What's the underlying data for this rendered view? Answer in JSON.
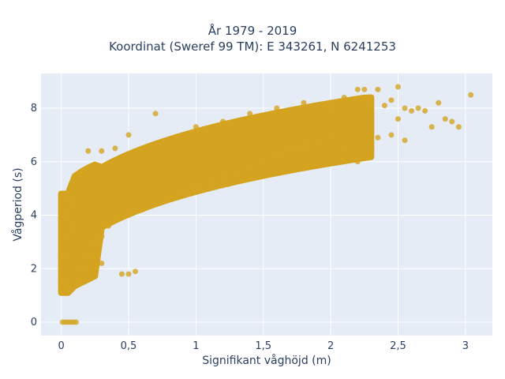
{
  "chart_data": {
    "type": "scatter",
    "title": "År 1979 - 2019",
    "subtitle": "Koordinat (Sweref 99 TM): E 343261, N 6241253",
    "xlabel": "Signifikant våghöjd (m)",
    "ylabel": "Vågperiod (s)",
    "xlim": [
      -0.15,
      3.2
    ],
    "ylim": [
      -0.5,
      9.3
    ],
    "x_ticks": [
      0,
      0.5,
      1,
      1.5,
      2,
      2.5,
      3
    ],
    "x_tick_labels": [
      "0",
      "0,5",
      "1",
      "1,5",
      "2",
      "2,5",
      "3"
    ],
    "y_ticks": [
      0,
      2,
      4,
      6,
      8
    ],
    "y_tick_labels": [
      "0",
      "2",
      "4",
      "6",
      "8"
    ],
    "grid": true,
    "marker_color": "#d4a420",
    "background_color": "#e5ecf6",
    "series": [
      {
        "values": [
          [
            0.01,
            0
          ],
          [
            0.03,
            0
          ],
          [
            0.05,
            0
          ],
          [
            0.07,
            0
          ],
          [
            0.09,
            0
          ],
          [
            0.11,
            0
          ],
          [
            0.02,
            1.6
          ],
          [
            0.02,
            2.5
          ],
          [
            0.03,
            3.2
          ],
          [
            0.04,
            4.0
          ],
          [
            0.05,
            4.7
          ],
          [
            0.06,
            1.2
          ],
          [
            0.08,
            3.5
          ],
          [
            0.1,
            4.5
          ],
          [
            0.12,
            1.4
          ],
          [
            0.15,
            2.0
          ],
          [
            0.2,
            2.5
          ],
          [
            0.25,
            3.0
          ],
          [
            0.3,
            3.2
          ],
          [
            0.35,
            3.6
          ],
          [
            0.4,
            3.8
          ],
          [
            0.5,
            4.0
          ],
          [
            0.6,
            4.2
          ],
          [
            0.7,
            4.4
          ],
          [
            0.8,
            4.6
          ],
          [
            0.9,
            4.8
          ],
          [
            1.0,
            5.0
          ],
          [
            1.1,
            5.2
          ],
          [
            1.2,
            5.4
          ],
          [
            1.3,
            5.6
          ],
          [
            1.4,
            5.8
          ],
          [
            1.5,
            6.0
          ],
          [
            1.6,
            6.2
          ],
          [
            1.7,
            6.4
          ],
          [
            1.8,
            6.6
          ],
          [
            1.9,
            6.8
          ],
          [
            2.0,
            7.0
          ],
          [
            0.2,
            6.4
          ],
          [
            0.3,
            6.4
          ],
          [
            0.4,
            6.5
          ],
          [
            0.5,
            7.0
          ],
          [
            0.7,
            7.8
          ],
          [
            1.0,
            7.3
          ],
          [
            1.2,
            7.5
          ],
          [
            1.4,
            7.8
          ],
          [
            1.6,
            8.0
          ],
          [
            1.8,
            8.2
          ],
          [
            2.0,
            8.0
          ],
          [
            2.1,
            8.4
          ],
          [
            2.2,
            8.7
          ],
          [
            2.25,
            8.7
          ],
          [
            2.3,
            8.3
          ],
          [
            2.35,
            8.7
          ],
          [
            2.4,
            8.1
          ],
          [
            2.45,
            8.3
          ],
          [
            2.5,
            8.8
          ],
          [
            2.55,
            8.0
          ],
          [
            2.6,
            7.9
          ],
          [
            2.65,
            8.0
          ],
          [
            2.7,
            7.9
          ],
          [
            2.75,
            7.3
          ],
          [
            2.8,
            8.2
          ],
          [
            2.85,
            7.6
          ],
          [
            2.9,
            7.5
          ],
          [
            2.95,
            7.3
          ],
          [
            3.04,
            8.5
          ],
          [
            2.5,
            7.6
          ],
          [
            2.55,
            6.8
          ],
          [
            2.45,
            7.0
          ],
          [
            2.35,
            6.9
          ],
          [
            2.2,
            6.0
          ],
          [
            2.1,
            6.5
          ],
          [
            0.5,
            1.8
          ],
          [
            0.55,
            1.9
          ],
          [
            0.45,
            1.8
          ],
          [
            0.3,
            2.2
          ]
        ]
      }
    ]
  }
}
